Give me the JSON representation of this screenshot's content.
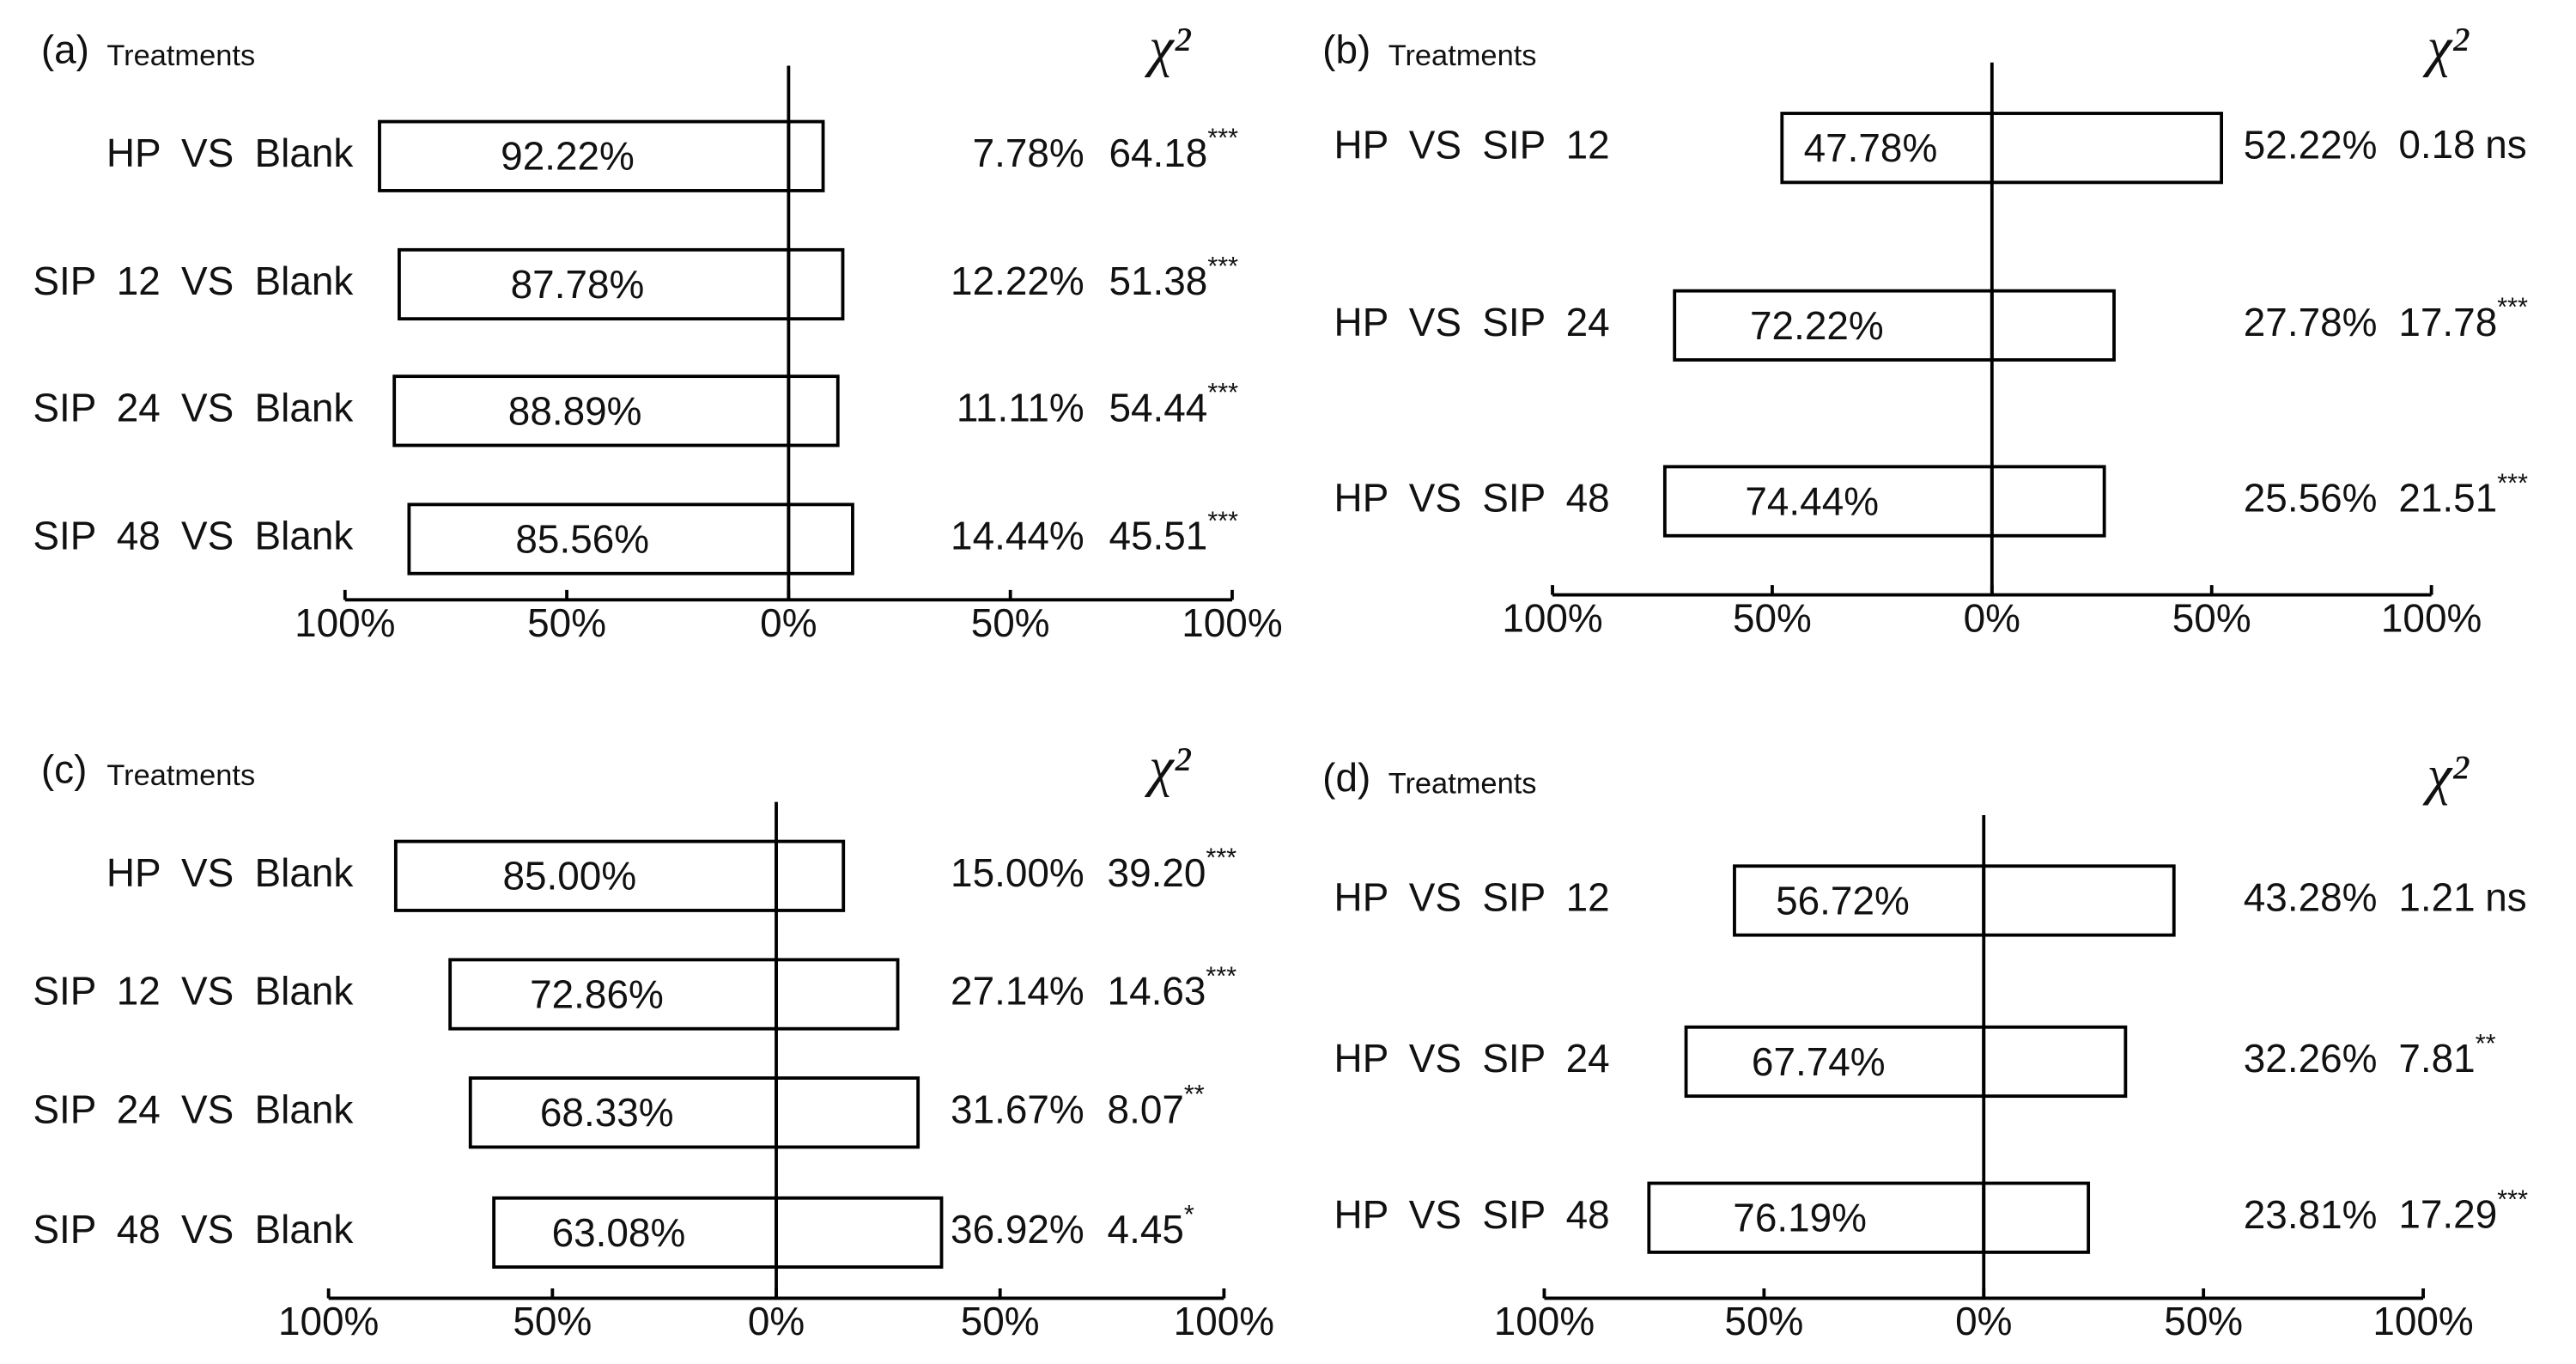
{
  "chart_data": [
    {
      "type": "diverging-bar",
      "panel": "(a)",
      "y_label": "Treatments",
      "stat_label": "χ²",
      "categories": [
        "HP VS Blank",
        "SIP 12 VS Blank",
        "SIP 24 VS Blank",
        "SIP 48 VS Blank"
      ],
      "series": [
        {
          "name": "left",
          "values": [
            92.22,
            87.78,
            88.89,
            85.56
          ],
          "value_labels": [
            "92.22%",
            "87.78%",
            "88.89%",
            "85.56%"
          ]
        },
        {
          "name": "right",
          "values": [
            7.78,
            12.22,
            11.11,
            14.44
          ],
          "value_labels": [
            "7.78%",
            "12.22%",
            "11.11%",
            "14.44%"
          ]
        }
      ],
      "chi_square": {
        "values": [
          64.18,
          51.38,
          54.44,
          45.51
        ],
        "value_labels": [
          "64.18",
          "51.38",
          "54.44",
          "45.51"
        ],
        "significance": [
          "***",
          "***",
          "***",
          "***"
        ]
      },
      "xlim": [
        -100,
        100
      ],
      "xticks": [
        {
          "value": -100,
          "label": "100%"
        },
        {
          "value": -50,
          "label": "50%"
        },
        {
          "value": 0,
          "label": "0%"
        },
        {
          "value": 50,
          "label": "50%"
        },
        {
          "value": 100,
          "label": "100%"
        }
      ]
    },
    {
      "type": "diverging-bar",
      "panel": "(b)",
      "y_label": "Treatments",
      "stat_label": "χ²",
      "categories": [
        "HP VS SIP 12",
        "HP VS SIP 24",
        "HP VS SIP 48"
      ],
      "series": [
        {
          "name": "left",
          "values": [
            47.78,
            72.22,
            74.44
          ],
          "value_labels": [
            "47.78%",
            "72.22%",
            "74.44%"
          ]
        },
        {
          "name": "right",
          "values": [
            52.22,
            27.78,
            25.56
          ],
          "value_labels": [
            "52.22%",
            "27.78%",
            "25.56%"
          ]
        }
      ],
      "chi_square": {
        "values": [
          0.18,
          17.78,
          21.51
        ],
        "value_labels": [
          "0.18",
          "17.78",
          "21.51"
        ],
        "significance": [
          "ns",
          "***",
          "***"
        ]
      },
      "xlim": [
        -100,
        100
      ],
      "xticks": [
        {
          "value": -100,
          "label": "100%"
        },
        {
          "value": -50,
          "label": "50%"
        },
        {
          "value": 0,
          "label": "0%"
        },
        {
          "value": 50,
          "label": "50%"
        },
        {
          "value": 100,
          "label": "100%"
        }
      ]
    },
    {
      "type": "diverging-bar",
      "panel": "(c)",
      "y_label": "Treatments",
      "stat_label": "χ²",
      "categories": [
        "HP VS Blank",
        "SIP 12 VS Blank",
        "SIP 24 VS Blank",
        "SIP 48 VS Blank"
      ],
      "series": [
        {
          "name": "left",
          "values": [
            85.0,
            72.86,
            68.33,
            63.08
          ],
          "value_labels": [
            "85.00%",
            "72.86%",
            "68.33%",
            "63.08%"
          ]
        },
        {
          "name": "right",
          "values": [
            15.0,
            27.14,
            31.67,
            36.92
          ],
          "value_labels": [
            "15.00%",
            "27.14%",
            "31.67%",
            "36.92%"
          ]
        }
      ],
      "chi_square": {
        "values": [
          39.2,
          14.63,
          8.07,
          4.45
        ],
        "value_labels": [
          "39.20",
          "14.63",
          "8.07",
          "4.45"
        ],
        "significance": [
          "***",
          "***",
          "**",
          "*"
        ]
      },
      "xlim": [
        -100,
        100
      ],
      "xticks": [
        {
          "value": -100,
          "label": "100%"
        },
        {
          "value": -50,
          "label": "50%"
        },
        {
          "value": 0,
          "label": "0%"
        },
        {
          "value": 50,
          "label": "50%"
        },
        {
          "value": 100,
          "label": "100%"
        }
      ]
    },
    {
      "type": "diverging-bar",
      "panel": "(d)",
      "y_label": "Treatments",
      "stat_label": "χ²",
      "categories": [
        "HP VS SIP 12",
        "HP VS SIP 24",
        "HP VS SIP 48"
      ],
      "series": [
        {
          "name": "left",
          "values": [
            56.72,
            67.74,
            76.19
          ],
          "value_labels": [
            "56.72%",
            "67.74%",
            "76.19%"
          ]
        },
        {
          "name": "right",
          "values": [
            43.28,
            32.26,
            23.81
          ],
          "value_labels": [
            "43.28%",
            "32.26%",
            "23.81%"
          ]
        }
      ],
      "chi_square": {
        "values": [
          1.21,
          7.81,
          17.29
        ],
        "value_labels": [
          "1.21",
          "7.81",
          "17.29"
        ],
        "significance": [
          "ns",
          "**",
          "***"
        ]
      },
      "xlim": [
        -100,
        100
      ],
      "xticks": [
        {
          "value": -100,
          "label": "100%"
        },
        {
          "value": -50,
          "label": "50%"
        },
        {
          "value": 0,
          "label": "0%"
        },
        {
          "value": 50,
          "label": "50%"
        },
        {
          "value": 100,
          "label": "100%"
        }
      ]
    }
  ]
}
